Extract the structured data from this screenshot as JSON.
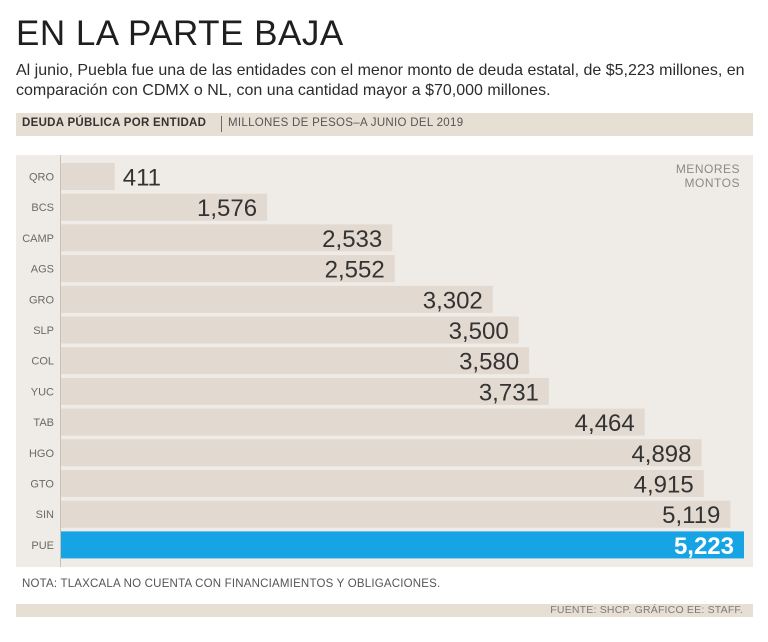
{
  "header": {
    "title": "EN LA PARTE BAJA",
    "subtitle": "Al junio, Puebla fue una de las entidades con el menor monto de deuda estatal, de $5,223 millones, en comparación con CDMX o NL, con una cantidad mayor a $70,000 millones."
  },
  "band": {
    "bold": "DEUDA PÚBLICA POR ENTIDAD",
    "light": "MILLONES DE PESOS–A JUNIO DEL 2019"
  },
  "note": "NOTA: TLAXCALA NO CUENTA CON FINANCIAMIENTOS  Y OBLIGACIONES.",
  "footer": "FUENTE: SHCP. GRÁFICO EE: STAFF.",
  "colors": {
    "bar": "#e2d9d0",
    "highlight": "#16a4e4",
    "plot_bg": "#efebe6",
    "band": "#e8dfd4"
  },
  "chart_data": {
    "type": "bar",
    "orientation": "horizontal",
    "title": "DEUDA PÚBLICA POR ENTIDAD",
    "subtitle": "MILLONES DE PESOS–A JUNIO DEL 2019",
    "categories": [
      "QRO",
      "BCS",
      "CAMP",
      "AGS",
      "GRO",
      "SLP",
      "COL",
      "YUC",
      "TAB",
      "HGO",
      "GTO",
      "SIN",
      "PUE"
    ],
    "values": [
      411,
      1576,
      2533,
      2552,
      3302,
      3500,
      3580,
      3731,
      4464,
      4898,
      4915,
      5119,
      5223
    ],
    "value_labels": [
      "411",
      "1,576",
      "2,533",
      "2,552",
      "3,302",
      "3,500",
      "3,580",
      "3,731",
      "4,464",
      "4,898",
      "4,915",
      "5,119",
      "5,223"
    ],
    "highlight": "PUE",
    "corner_note": [
      "MENORES",
      "MONTOS"
    ],
    "xlim": [
      0,
      5223
    ],
    "grid": false,
    "xlabel": "",
    "ylabel": ""
  }
}
